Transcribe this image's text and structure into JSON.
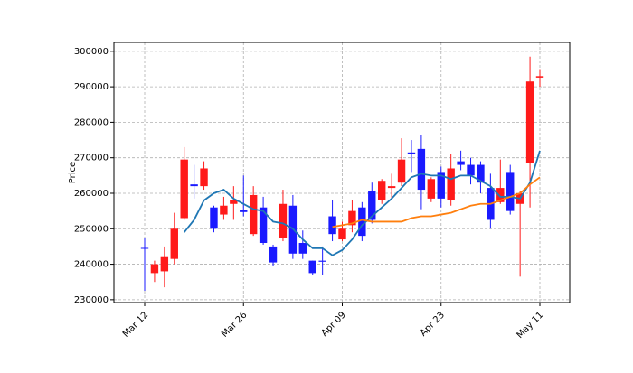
{
  "chart_data": {
    "type": "candlestick",
    "ylabel": "Price",
    "categories": [
      "Mar 12",
      null,
      null,
      null,
      null,
      null,
      null,
      null,
      null,
      null,
      "Mar 26",
      null,
      null,
      null,
      null,
      null,
      null,
      null,
      null,
      null,
      "Apr 09",
      null,
      null,
      null,
      null,
      null,
      null,
      null,
      null,
      null,
      "Apr 23",
      null,
      null,
      null,
      null,
      null,
      null,
      null,
      null,
      null,
      "May 11"
    ],
    "open": [
      244600,
      237500,
      238000,
      241500,
      253000,
      262500,
      262000,
      256000,
      254000,
      257000,
      255200,
      248500,
      256000,
      245000,
      247500,
      256500,
      246000,
      241000,
      241000,
      253500,
      247000,
      251000,
      256000,
      260500,
      258000,
      261500,
      263000,
      271500,
      272500,
      258500,
      266000,
      258000,
      269000,
      268000,
      268000,
      261500,
      257500,
      266000,
      257000,
      268500,
      292600
    ],
    "high": [
      247500,
      241000,
      245000,
      254500,
      273000,
      268000,
      269000,
      256500,
      259000,
      262000,
      265000,
      262000,
      259000,
      245500,
      261000,
      259500,
      249500,
      241000,
      245000,
      258000,
      252000,
      258000,
      257500,
      263000,
      264000,
      265500,
      275500,
      275000,
      276500,
      264500,
      267500,
      271000,
      272000,
      270000,
      269000,
      265500,
      269500,
      268000,
      260500,
      298500,
      295000
    ],
    "low": [
      232500,
      235000,
      233500,
      240000,
      252500,
      258500,
      261000,
      249000,
      252500,
      252500,
      253500,
      248000,
      245500,
      239500,
      246500,
      241500,
      241500,
      237000,
      237000,
      246500,
      246500,
      249000,
      246500,
      251500,
      257000,
      258500,
      262000,
      266000,
      255500,
      257500,
      256000,
      256500,
      266500,
      262500,
      260000,
      250000,
      257000,
      254000,
      236500,
      256000,
      290000
    ],
    "close": [
      244400,
      240000,
      242000,
      250000,
      269500,
      262000,
      267000,
      250000,
      256500,
      258000,
      254700,
      259500,
      246000,
      240500,
      257000,
      243000,
      243000,
      237500,
      240700,
      248500,
      250000,
      255000,
      248000,
      252500,
      263500,
      262000,
      269500,
      271000,
      261000,
      264000,
      258500,
      267000,
      268000,
      265000,
      263000,
      252500,
      261500,
      255000,
      260000,
      291500,
      293000
    ],
    "up_color": "#ff1a1a",
    "down_color": "#1a1aff",
    "series": [
      {
        "color": "#1f77b4",
        "values": [
          null,
          null,
          null,
          null,
          249000,
          252500,
          258000,
          260000,
          261000,
          258500,
          257000,
          255500,
          255000,
          252000,
          251500,
          250000,
          247000,
          244500,
          244500,
          242500,
          244000,
          247000,
          251000,
          253500,
          256000,
          258500,
          261500,
          264500,
          265500,
          265000,
          265000,
          264000,
          265000,
          265000,
          263500,
          262000,
          259000,
          259000,
          258500,
          263000,
          272000
        ]
      },
      {
        "color": "#ff7f0e",
        "values": [
          null,
          null,
          null,
          null,
          null,
          null,
          null,
          null,
          null,
          null,
          null,
          null,
          null,
          null,
          null,
          null,
          null,
          null,
          null,
          250500,
          251000,
          251500,
          252500,
          252000,
          252000,
          252000,
          252000,
          253000,
          253500,
          253500,
          254000,
          254500,
          255500,
          256500,
          257000,
          257000,
          258000,
          259000,
          260000,
          262500,
          264500
        ]
      }
    ],
    "ylim": [
      229200,
      302500
    ],
    "yticks": [
      230000,
      240000,
      250000,
      260000,
      270000,
      280000,
      290000,
      300000
    ],
    "grid": true
  }
}
